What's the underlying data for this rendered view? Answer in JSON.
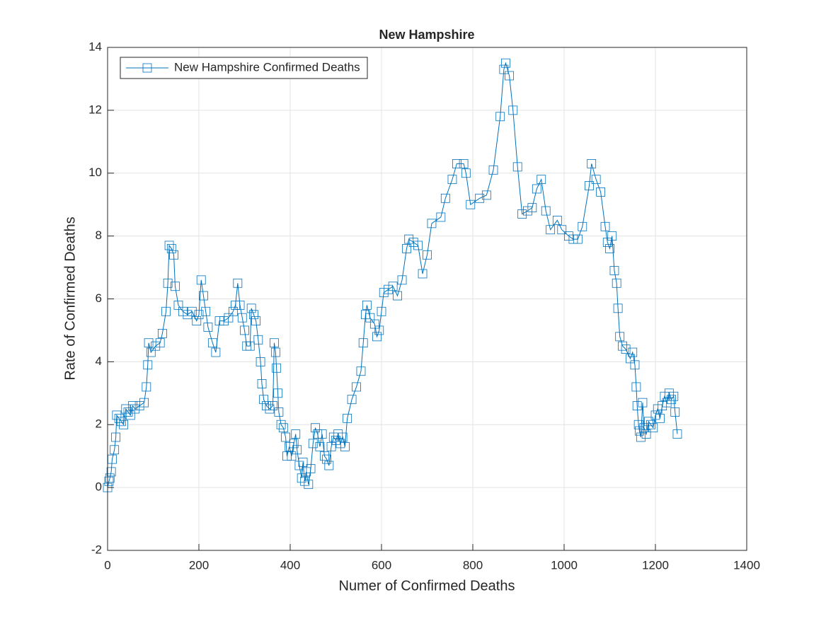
{
  "chart_data": {
    "type": "line",
    "title": "New Hampshire",
    "x_label": "Numer of Confirmed Deaths",
    "y_label": "Rate of Confirmed Deaths",
    "x": [
      0,
      3,
      5,
      8,
      10,
      15,
      18,
      20,
      25,
      30,
      35,
      40,
      45,
      50,
      55,
      60,
      70,
      80,
      85,
      88,
      90,
      95,
      105,
      115,
      120,
      128,
      132,
      135,
      140,
      145,
      148,
      155,
      165,
      175,
      185,
      195,
      200,
      205,
      210,
      215,
      220,
      230,
      237,
      245,
      255,
      265,
      275,
      280,
      285,
      290,
      295,
      300,
      305,
      312,
      315,
      320,
      325,
      330,
      335,
      338,
      342,
      348,
      355,
      362,
      365,
      368,
      370,
      373,
      375,
      380,
      385,
      390,
      393,
      398,
      403,
      408,
      412,
      415,
      420,
      425,
      428,
      432,
      435,
      440,
      445,
      450,
      455,
      460,
      465,
      470,
      475,
      480,
      485,
      490,
      495,
      500,
      505,
      510,
      515,
      520,
      525,
      535,
      545,
      555,
      560,
      565,
      568,
      575,
      585,
      590,
      595,
      600,
      605,
      615,
      625,
      635,
      645,
      655,
      660,
      670,
      680,
      690,
      700,
      710,
      730,
      740,
      755,
      765,
      780,
      785,
      795,
      815,
      830,
      845,
      860,
      868,
      872,
      880,
      888,
      898,
      908,
      920,
      930,
      940,
      950,
      960,
      970,
      985,
      995,
      1010,
      1020,
      1030,
      1040,
      1055,
      1060,
      1070,
      1080,
      1090,
      1095,
      1100,
      1105,
      1110,
      1115,
      1118,
      1122,
      1128,
      1135,
      1145,
      1150,
      1155,
      1158,
      1160,
      1163,
      1165,
      1168,
      1172,
      1175,
      1180,
      1185,
      1190,
      1195,
      1200,
      1205,
      1210,
      1215,
      1220,
      1225,
      1230,
      1235,
      1240,
      1243,
      1248
    ],
    "series": [
      {
        "name": "New Hampshire Confirmed Deaths",
        "color": "#0072bd",
        "values": [
          0,
          0.2,
          0.3,
          0.5,
          0.9,
          1.2,
          1.6,
          2.3,
          2.2,
          2.1,
          2.0,
          2.5,
          2.4,
          2.3,
          2.6,
          2.5,
          2.6,
          2.7,
          3.2,
          3.9,
          4.6,
          4.3,
          4.5,
          4.6,
          4.9,
          5.6,
          6.5,
          7.7,
          7.6,
          7.4,
          6.4,
          5.8,
          5.6,
          5.5,
          5.6,
          5.3,
          5.5,
          6.6,
          6.1,
          5.6,
          5.1,
          4.6,
          4.3,
          5.3,
          5.3,
          5.4,
          5.6,
          5.8,
          6.5,
          5.8,
          5.4,
          5.0,
          4.5,
          4.5,
          5.7,
          5.5,
          5.3,
          4.7,
          4.0,
          3.3,
          2.8,
          2.6,
          2.5,
          2.6,
          4.6,
          4.3,
          3.8,
          3.0,
          2.4,
          2.0,
          1.9,
          1.6,
          1.0,
          1.3,
          1.0,
          1.4,
          1.7,
          1.2,
          0.7,
          0.3,
          0.8,
          0.2,
          0.5,
          0.1,
          0.6,
          1.4,
          1.9,
          1.7,
          1.3,
          1.7,
          1.0,
          0.9,
          0.7,
          1.3,
          1.6,
          1.5,
          1.7,
          1.4,
          1.6,
          1.3,
          2.2,
          2.8,
          3.2,
          3.7,
          4.6,
          5.5,
          5.8,
          5.4,
          5.2,
          4.8,
          5.0,
          5.6,
          6.2,
          6.3,
          6.4,
          6.1,
          6.6,
          7.6,
          7.9,
          7.8,
          7.7,
          6.8,
          7.4,
          8.4,
          8.6,
          9.2,
          9.8,
          10.3,
          10.3,
          10.0,
          9.0,
          9.2,
          9.3,
          10.1,
          11.8,
          13.3,
          13.5,
          13.1,
          12.0,
          10.2,
          8.7,
          8.8,
          8.9,
          9.5,
          9.8,
          8.8,
          8.2,
          8.5,
          8.2,
          8.0,
          7.9,
          7.9,
          8.3,
          9.6,
          10.3,
          9.8,
          9.4,
          8.3,
          7.8,
          7.6,
          8.0,
          6.9,
          6.5,
          5.7,
          4.8,
          4.5,
          4.4,
          4.1,
          4.3,
          3.9,
          3.2,
          2.6,
          2.0,
          1.8,
          1.6,
          2.7,
          1.9,
          1.7,
          2.1,
          2.0,
          1.9,
          2.3,
          2.5,
          2.2,
          2.6,
          2.9,
          2.7,
          3.0,
          2.8,
          2.9,
          2.4,
          1.7
        ]
      }
    ],
    "xlim": [
      0,
      1400
    ],
    "xticks": [
      0,
      200,
      400,
      600,
      800,
      1000,
      1200,
      1400
    ],
    "ylim": [
      -2,
      14
    ],
    "yticks": [
      -2,
      0,
      2,
      4,
      6,
      8,
      10,
      12,
      14
    ],
    "grid": true,
    "legend": "northwest"
  }
}
